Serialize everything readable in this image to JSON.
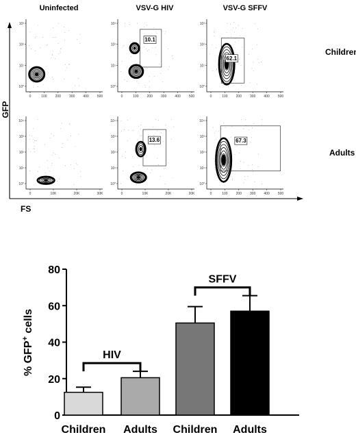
{
  "flow": {
    "column_headers": [
      "Uninfected",
      "VSV-G HIV",
      "VSV-G SFFV"
    ],
    "row_labels": [
      "Children",
      "Adults"
    ],
    "y_axis_label": "GFP",
    "x_axis_label": "FS",
    "panels": [
      {
        "row": 0,
        "col": 0,
        "gate_percent": "",
        "y_ticks": [
          "10⁰",
          "10¹",
          "10²",
          "10³"
        ],
        "x_ticks": [
          "0",
          "100",
          "200",
          "300",
          "400",
          "500"
        ]
      },
      {
        "row": 0,
        "col": 1,
        "gate_percent": "10.1",
        "y_ticks": [
          "10⁰",
          "10¹",
          "10²",
          "10³"
        ],
        "x_ticks": [
          "0",
          "100",
          "200",
          "300",
          "400",
          "500"
        ]
      },
      {
        "row": 0,
        "col": 2,
        "gate_percent": "62.1",
        "y_ticks": [
          "10⁰",
          "10¹",
          "10²",
          "10³"
        ],
        "x_ticks": [
          "0",
          "100",
          "200",
          "300",
          "400",
          "500"
        ]
      },
      {
        "row": 1,
        "col": 0,
        "gate_percent": "",
        "y_ticks": [
          "10⁰",
          "10¹",
          "10²",
          "10³",
          "10⁴"
        ],
        "x_ticks": [
          "0",
          "10K",
          "20K",
          "30K"
        ]
      },
      {
        "row": 1,
        "col": 1,
        "gate_percent": "13.6",
        "y_ticks": [
          "10⁰",
          "10¹",
          "10²",
          "10³",
          "10⁴"
        ],
        "x_ticks": [
          "0",
          "10K",
          "20K",
          "30K"
        ]
      },
      {
        "row": 1,
        "col": 2,
        "gate_percent": "67.3",
        "y_ticks": [
          "10⁰",
          "10¹",
          "10²",
          "10³",
          "10⁴"
        ],
        "x_ticks": [
          "0",
          "100",
          "200",
          "300",
          "400",
          "500"
        ]
      }
    ]
  },
  "chart_data": {
    "type": "bar",
    "categories": [
      "Children",
      "Adults",
      "Children",
      "Adults"
    ],
    "values": [
      12.5,
      20.5,
      50.5,
      57.0
    ],
    "errors": [
      2.8,
      3.5,
      9.0,
      8.5
    ],
    "bar_colors": [
      "#d9d9d9",
      "#aaaaaa",
      "#777777",
      "#000000"
    ],
    "groups": [
      {
        "label": "HIV",
        "categories": [
          0,
          1
        ]
      },
      {
        "label": "SFFV",
        "categories": [
          2,
          3
        ]
      }
    ],
    "ylabel_main": "% GFP",
    "ylabel_sup": "+",
    "ylabel_rest": " cells",
    "xlabel": "",
    "title": "",
    "ylim": [
      0,
      80
    ],
    "yticks": [
      "0",
      "20",
      "40",
      "60",
      "80"
    ]
  }
}
